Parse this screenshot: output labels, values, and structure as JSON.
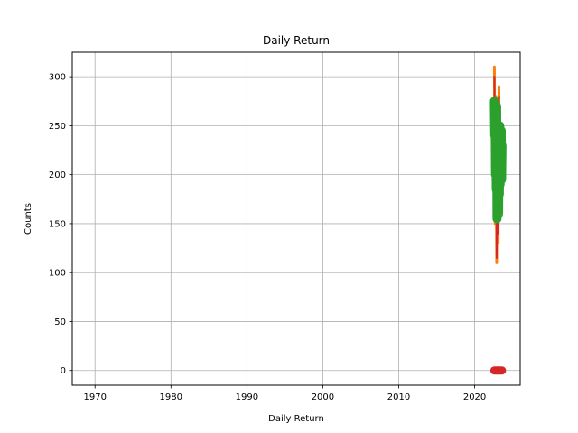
{
  "chart_data": {
    "type": "line",
    "title": "Daily Return",
    "xlabel": "Daily Return",
    "ylabel": "Counts",
    "xlim": [
      1967,
      2026
    ],
    "ylim": [
      -15,
      325
    ],
    "xticks": [
      1970,
      1980,
      1990,
      2000,
      2010,
      2020
    ],
    "xtick_labels": [
      "1970",
      "1980",
      "1990",
      "2000",
      "2010",
      "2020"
    ],
    "yticks": [
      0,
      50,
      100,
      150,
      200,
      250,
      300
    ],
    "ytick_labels": [
      "0",
      "50",
      "100",
      "150",
      "200",
      "250",
      "300"
    ],
    "grid": true,
    "series": [
      {
        "color": "#ff7f0e",
        "linewidth": 3,
        "x": [
          2022.6,
          2022.7,
          2022.8,
          2022.9,
          2023.0,
          2023.1,
          2023.2,
          2023.3,
          2023.4,
          2023.5,
          2023.6
        ],
        "values": [
          310,
          150,
          280,
          110,
          250,
          130,
          290,
          160,
          240,
          180,
          220
        ]
      },
      {
        "color": "#d62728",
        "linewidth": 2,
        "x": [
          2022.6,
          2022.7,
          2022.8,
          2022.9,
          2023.0,
          2023.1,
          2023.2,
          2023.3,
          2023.4,
          2023.5,
          2023.6
        ],
        "values": [
          300,
          160,
          270,
          115,
          245,
          140,
          280,
          165,
          235,
          185,
          215
        ]
      },
      {
        "color": "#2ca02c",
        "linewidth": 10,
        "x": [
          2022.6,
          2022.65,
          2022.7,
          2022.75,
          2022.8,
          2022.85,
          2022.9,
          2022.95,
          2023.0,
          2023.05,
          2023.1,
          2023.15,
          2023.2,
          2023.25,
          2023.3,
          2023.35,
          2023.4,
          2023.45,
          2023.5,
          2023.55,
          2023.6
        ],
        "values": [
          275,
          240,
          265,
          200,
          250,
          185,
          270,
          155,
          230,
          175,
          245,
          160,
          220,
          180,
          250,
          190,
          235,
          200,
          245,
          195,
          230
        ]
      },
      {
        "color": "#d62728",
        "linewidth": 9,
        "x": [
          2022.6,
          2022.8,
          2023.0,
          2023.2,
          2023.4,
          2023.6
        ],
        "values": [
          0,
          0,
          0,
          0,
          0,
          0
        ]
      }
    ]
  }
}
